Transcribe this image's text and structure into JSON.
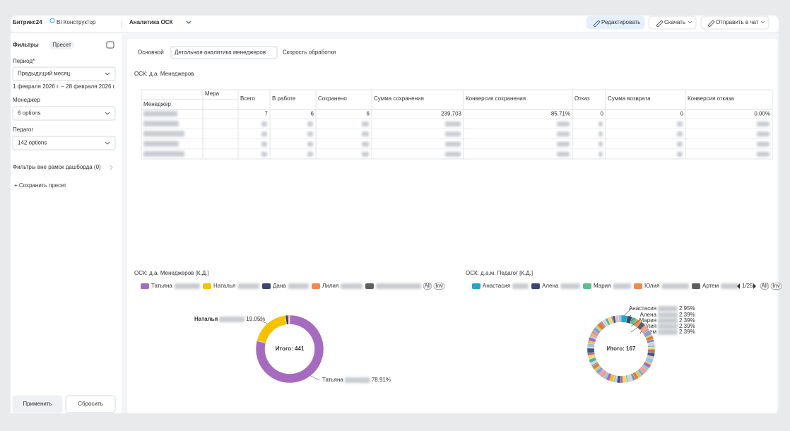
{
  "header": {
    "logo": "Битрикс24",
    "product": "BI Конструктор",
    "title": "Аналитика ОСК",
    "buttons": [
      "Редактировать",
      "Скачать",
      "Отправить в чат"
    ]
  },
  "sidebar": {
    "title": "Фильтры",
    "preset": "Пресет",
    "filters": [
      {
        "label": "Период*",
        "value": "Предыдущий месяц",
        "hint": "1 февраля 2026 г. – 28 февраля 2026 г."
      },
      {
        "label": "Менеджер",
        "value": "6 options"
      },
      {
        "label": "Педагог",
        "value": "142 options"
      }
    ],
    "outside": "Фильтры вне рамок дашборда (0)",
    "save": "+ Сохранить пресет",
    "apply": "Применить",
    "reset": "Сбросить"
  },
  "tabs": [
    "Основной",
    "Детальная аналитика менеджеров",
    "Скорость обработки"
  ],
  "active_tab": 1,
  "table": {
    "title": "ОСК: д.а. Менеджеров",
    "measure": "Мера",
    "dimension": "Менеджер",
    "columns": [
      "Всего",
      "В работе",
      "Сохранено",
      "Сумма сохранения",
      "Конверсия сохранения",
      "Отказ",
      "Сумма возврата",
      "Конверсия отказа"
    ],
    "rows": [
      [
        7,
        6,
        6,
        "239,703",
        "85.71%",
        0,
        0,
        "0.00%"
      ]
    ]
  },
  "charts": [
    {
      "type": "pie",
      "title": "ОСК: д.а. Менеджеров [К.Д.]",
      "total": "Итого: 441",
      "categories": [
        "Татьяна",
        "Наталья",
        "Дана",
        "Лилия",
        null
      ],
      "values": [
        78.91,
        19.05,
        1.36,
        0.45,
        0.23
      ],
      "value_labels": [
        "78.91%",
        "19.05%",
        null,
        null,
        null
      ],
      "colors": [
        "#a66bbe",
        "#f6c100",
        "#3b4672",
        "#f08a4c",
        "#5f5f5f"
      ],
      "legend_controls": [
        "All",
        "Inv"
      ]
    },
    {
      "type": "pie",
      "title": "ОСК: д.а.м. Педагог [К.Д.]",
      "total": "Итого: 167",
      "pager": "1/25",
      "categories": [
        "Анастасия",
        "Алена",
        "Мария",
        "Юлия",
        "Артем",
        null,
        null,
        null,
        null,
        null,
        null,
        null,
        null,
        null,
        null,
        null,
        null,
        null,
        null,
        null,
        null,
        null,
        null,
        null,
        null,
        null,
        null,
        null,
        null,
        null,
        null,
        null,
        null,
        null,
        null,
        null,
        null,
        null,
        null,
        null,
        null,
        null,
        null,
        null,
        null,
        null,
        null,
        null,
        null,
        null,
        null,
        null,
        null,
        null,
        null,
        null,
        null,
        null,
        null,
        null,
        null,
        null,
        null,
        null,
        null,
        null
      ],
      "values": [
        2.95,
        2.39,
        2.39,
        2.39,
        2.39,
        1.8,
        1.2,
        2.4,
        0.6,
        1.8,
        1.2,
        1.8,
        0.6,
        1.2,
        1.8,
        1.8,
        1.2,
        2.4,
        0.6,
        1.8,
        1.2,
        1.8,
        0.6,
        1.2,
        1.8,
        1.8,
        1.2,
        2.4,
        0.6,
        1.8,
        1.2,
        1.8,
        0.6,
        1.2,
        1.8,
        1.8,
        1.2,
        2.4,
        0.6,
        1.8,
        1.2,
        1.8,
        0.6,
        1.2,
        1.8,
        1.8,
        1.2,
        2.4,
        0.6,
        1.8,
        1.2,
        1.8,
        0.6,
        1.2,
        1.8,
        1.8,
        1.2,
        2.4,
        0.6,
        1.8,
        1.2,
        1.8,
        0.6,
        1.2,
        1.8,
        1.2
      ],
      "value_labels": [
        "2.95%",
        "2.39%",
        "2.39%",
        "2.39%",
        "2.39%",
        null,
        null,
        null,
        null,
        null,
        null,
        null,
        null,
        null,
        null,
        null,
        null,
        null,
        null,
        null,
        null,
        null,
        null,
        null,
        null,
        null,
        null,
        null,
        null,
        null,
        null,
        null,
        null,
        null,
        null,
        null,
        null,
        null,
        null,
        null,
        null,
        null,
        null,
        null,
        null,
        null,
        null,
        null,
        null,
        null,
        null,
        null,
        null,
        null,
        null,
        null,
        null,
        null,
        null,
        null,
        null,
        null,
        null,
        null,
        null,
        null
      ],
      "colors": [
        "#29a3c6",
        "#3b4672",
        "#5cbf8f",
        "#f08a4c",
        "#5f5f5f"
      ],
      "palette": [
        "#e8b7c8",
        "#9ac3e6",
        "#f6c100",
        "#a66bbe",
        "#7fd0c1",
        "#f29b9b",
        "#c7a17a",
        "#8e9bd6",
        "#b5d56a",
        "#e07b39",
        "#6c8ebf",
        "#d4d4d4",
        "#4fb3a9",
        "#f5d76e",
        "#c06c84",
        "#355c7d"
      ],
      "legend_controls": [
        "All",
        "Inv"
      ]
    }
  ]
}
